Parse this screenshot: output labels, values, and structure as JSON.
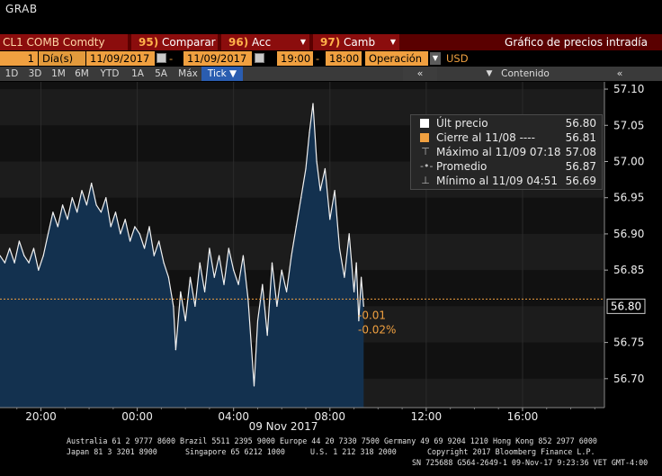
{
  "app": {
    "title": "GRAB"
  },
  "command_bar": {
    "ticker": "CL1 COMB Comdty",
    "compare_num": "95)",
    "compare_label": "Comparar",
    "acc_num": "96)",
    "acc_label": "Acc",
    "camb_num": "97)",
    "camb_label": "Camb",
    "screen_title": "Gráfico de precios intradía"
  },
  "options_bar": {
    "period_count": "1",
    "period_unit": "Día(s)",
    "date_from": "11/09/2017",
    "date_to": "11/09/2017",
    "time_from": "19:00",
    "time_to": "18:00",
    "field": "Operación",
    "currency": "USD"
  },
  "range_tabs": [
    "1D",
    "3D",
    "1M",
    "6M",
    "YTD",
    "1A",
    "5A",
    "Máx"
  ],
  "tick_tab": "Tick ▼",
  "collapse_label": "«",
  "content_label": "Contenido",
  "expand_label": "«",
  "legend": {
    "rows": [
      {
        "label": "Últ precio",
        "value": "56.80",
        "icon": "square-white",
        "color": "#ffffff"
      },
      {
        "label": "Cierre al 11/08 ----",
        "value": "56.81",
        "icon": "square-orange",
        "color": "#f0a040"
      },
      {
        "label": "Máximo al 11/09 07:18",
        "value": "57.08",
        "icon": "high-marker-icon"
      },
      {
        "label": "Promedio",
        "value": "56.87",
        "icon": "average-marker-icon"
      },
      {
        "label": "Mínimo al 11/09 04:51",
        "value": "56.69",
        "icon": "low-marker-icon"
      }
    ]
  },
  "change": {
    "abs": "-0.01",
    "pct": "-0.02%"
  },
  "last_price_label": "56.80",
  "chart_data": {
    "type": "area",
    "title": "",
    "xlabel": "",
    "ylabel": "",
    "date_label": "09 Nov 2017",
    "x_ticks": [
      "20:00",
      "00:00",
      "04:00",
      "08:00",
      "12:00",
      "16:00"
    ],
    "y_ticks": [
      "57.10",
      "57.05",
      "57.00",
      "56.95",
      "56.90",
      "56.85",
      "56.75",
      "56.70"
    ],
    "ylim": [
      56.66,
      57.11
    ],
    "x_range_hours": [
      -5.7,
      19.4
    ],
    "reference_line": 56.81,
    "last_price": 56.8,
    "series": [
      {
        "values": [
          [
            -5.7,
            56.87
          ],
          [
            -5.5,
            56.86
          ],
          [
            -5.3,
            56.88
          ],
          [
            -5.1,
            56.86
          ],
          [
            -4.9,
            56.89
          ],
          [
            -4.7,
            56.87
          ],
          [
            -4.5,
            56.86
          ],
          [
            -4.3,
            56.88
          ],
          [
            -4.1,
            56.85
          ],
          [
            -3.9,
            56.87
          ],
          [
            -3.7,
            56.9
          ],
          [
            -3.5,
            56.93
          ],
          [
            -3.3,
            56.91
          ],
          [
            -3.1,
            56.94
          ],
          [
            -2.9,
            56.92
          ],
          [
            -2.7,
            56.95
          ],
          [
            -2.5,
            56.93
          ],
          [
            -2.3,
            56.96
          ],
          [
            -2.1,
            56.94
          ],
          [
            -1.9,
            56.97
          ],
          [
            -1.7,
            56.94
          ],
          [
            -1.5,
            56.93
          ],
          [
            -1.3,
            56.95
          ],
          [
            -1.1,
            56.91
          ],
          [
            -0.9,
            56.93
          ],
          [
            -0.7,
            56.9
          ],
          [
            -0.5,
            56.92
          ],
          [
            -0.3,
            56.89
          ],
          [
            -0.1,
            56.91
          ],
          [
            0.1,
            56.9
          ],
          [
            0.3,
            56.88
          ],
          [
            0.5,
            56.91
          ],
          [
            0.7,
            56.87
          ],
          [
            0.9,
            56.89
          ],
          [
            1.1,
            56.86
          ],
          [
            1.3,
            56.84
          ],
          [
            1.5,
            56.8
          ],
          [
            1.6,
            56.74
          ],
          [
            1.8,
            56.82
          ],
          [
            2.0,
            56.78
          ],
          [
            2.2,
            56.84
          ],
          [
            2.4,
            56.8
          ],
          [
            2.6,
            56.86
          ],
          [
            2.8,
            56.82
          ],
          [
            3.0,
            56.88
          ],
          [
            3.2,
            56.84
          ],
          [
            3.4,
            56.87
          ],
          [
            3.6,
            56.83
          ],
          [
            3.8,
            56.88
          ],
          [
            4.0,
            56.85
          ],
          [
            4.2,
            56.83
          ],
          [
            4.4,
            56.87
          ],
          [
            4.6,
            56.81
          ],
          [
            4.85,
            56.69
          ],
          [
            5.0,
            56.78
          ],
          [
            5.2,
            56.83
          ],
          [
            5.4,
            56.76
          ],
          [
            5.6,
            56.86
          ],
          [
            5.8,
            56.8
          ],
          [
            6.0,
            56.85
          ],
          [
            6.2,
            56.82
          ],
          [
            6.4,
            56.87
          ],
          [
            6.6,
            56.91
          ],
          [
            6.8,
            56.95
          ],
          [
            7.0,
            56.99
          ],
          [
            7.15,
            57.04
          ],
          [
            7.3,
            57.08
          ],
          [
            7.45,
            57.0
          ],
          [
            7.6,
            56.96
          ],
          [
            7.8,
            56.99
          ],
          [
            8.0,
            56.92
          ],
          [
            8.2,
            56.96
          ],
          [
            8.4,
            56.88
          ],
          [
            8.6,
            56.84
          ],
          [
            8.8,
            56.9
          ],
          [
            9.0,
            56.82
          ],
          [
            9.1,
            56.86
          ],
          [
            9.2,
            56.78
          ],
          [
            9.3,
            56.84
          ],
          [
            9.4,
            56.8
          ]
        ]
      }
    ]
  },
  "footer": {
    "line1": "Australia 61 2 9777 8600 Brazil 5511 2395 9000 Europe 44 20 7330 7500 Germany 49 69 9204 1210 Hong Kong 852 2977 6000",
    "line2a": "Japan 81 3 3201 8900",
    "line2b": "Singapore 65 6212 1000",
    "line2c": "U.S. 1 212 318 2000",
    "line2d": "Copyright 2017 Bloomberg Finance L.P.",
    "line3": "SN 725688 G564-2649-1 09-Nov-17  9:23:36 VET  GMT-4:00"
  }
}
